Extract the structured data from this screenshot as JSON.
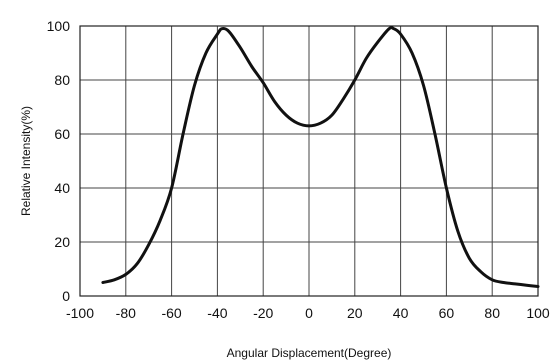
{
  "chart_data": {
    "type": "line",
    "title": "",
    "xlabel": "Angular Displacement(Degree)",
    "ylabel": "Relative Intensity(%)",
    "xlim": [
      -100,
      100
    ],
    "ylim": [
      0,
      100
    ],
    "xticks": [
      "-100",
      "-80",
      "-60",
      "-40",
      "-20",
      "0",
      "20",
      "40",
      "60",
      "80",
      "100"
    ],
    "yticks": [
      "0",
      "20",
      "40",
      "60",
      "80",
      "100"
    ],
    "grid": true,
    "legend": "none",
    "line_color": "#111111",
    "series": [
      {
        "x": [
          -90,
          -85,
          -80,
          -75,
          -70,
          -65,
          -60,
          -55,
          -50,
          -45,
          -40,
          -38,
          -35,
          -30,
          -25,
          -20,
          -15,
          -10,
          -5,
          0,
          5,
          10,
          15,
          20,
          25,
          30,
          35,
          37,
          40,
          45,
          50,
          55,
          60,
          65,
          70,
          75,
          80,
          85,
          90,
          95,
          100
        ],
        "y": [
          5,
          6,
          8,
          12,
          19,
          28,
          40,
          60,
          78,
          90,
          97,
          99,
          98,
          92,
          85,
          79,
          72,
          67,
          64,
          63,
          64,
          67,
          73,
          80,
          88,
          94,
          99,
          99,
          97,
          90,
          78,
          60,
          40,
          24,
          14,
          9,
          6,
          5,
          4.5,
          4,
          3.5
        ]
      }
    ]
  }
}
